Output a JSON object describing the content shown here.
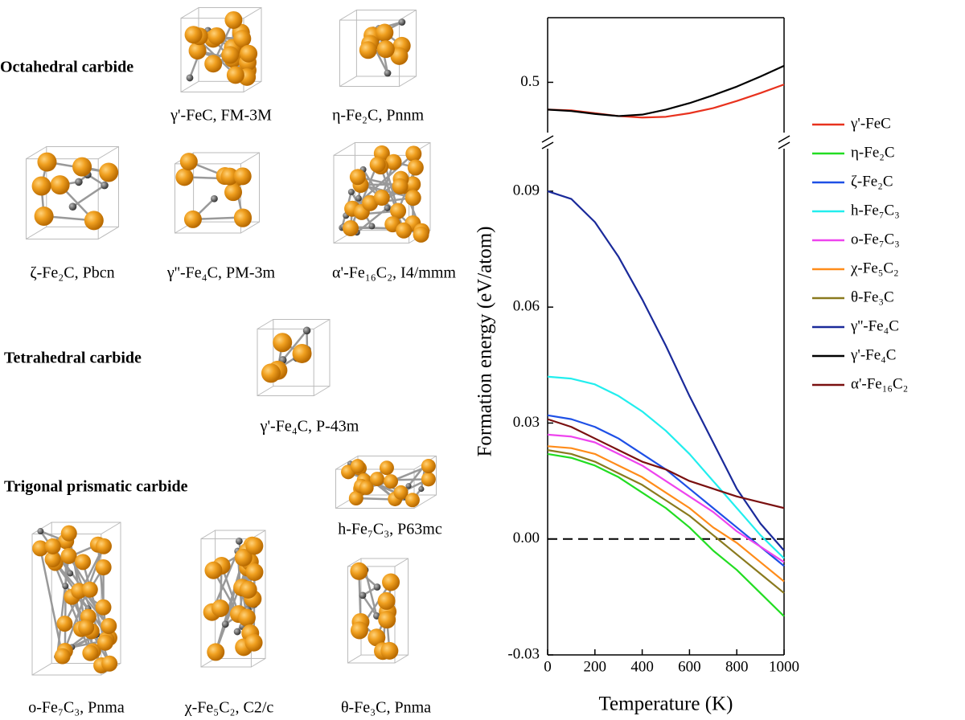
{
  "structure_panel": {
    "groups": [
      "Octahedral carbide",
      "Tetrahedral carbide",
      "Trigonal prismatic carbide"
    ],
    "structures": [
      {
        "label": "γ'-FeC, FM-3M"
      },
      {
        "label": "η-Fe₂C, Pnnm"
      },
      {
        "label": "ζ-Fe₂C, Pbcn"
      },
      {
        "label": "γ''-Fe₄C, PM-3m"
      },
      {
        "label": "α'-Fe₁₆C₂, I4/mmm"
      },
      {
        "label": "γ'-Fe₄C, P-43m"
      },
      {
        "label": "h-Fe₇C₃, P63mc"
      },
      {
        "label": "o-Fe₇C₃, Pnma"
      },
      {
        "label": "χ-Fe₅C₂, C2/c"
      },
      {
        "label": "θ-Fe₃C, Pnma"
      }
    ]
  },
  "chart_data": {
    "type": "line",
    "x_label": "Temperature (K)",
    "y_label": "Formation energy (eV/atom)",
    "x": [
      0,
      100,
      200,
      300,
      400,
      500,
      600,
      700,
      800,
      900,
      1000
    ],
    "xlim": [
      0,
      1000
    ],
    "xticks": [
      0,
      200,
      400,
      600,
      800,
      1000
    ],
    "ylim": [
      -0.03,
      0.101
    ],
    "yticks": [
      {
        "value": -0.03,
        "label": "-0.03"
      },
      {
        "value": 0,
        "label": "0.00"
      },
      {
        "value": 0.03,
        "label": "0.03"
      },
      {
        "value": 0.06,
        "label": "0.06"
      },
      {
        "value": 0.09,
        "label": "0.09"
      }
    ],
    "y2lim": [
      0.43,
      0.59
    ],
    "y2ticks": [
      0.5
    ],
    "axis_break": true,
    "zero_line": true,
    "series": [
      {
        "name": "γ'-FeC",
        "color": "#e8321e",
        "axis": "y2",
        "values": [
          0.462,
          0.461,
          0.457,
          0.453,
          0.451,
          0.452,
          0.457,
          0.464,
          0.474,
          0.485,
          0.497
        ]
      },
      {
        "name": "η-Fe₂C",
        "color": "#22dd22",
        "values": [
          0.022,
          0.021,
          0.019,
          0.016,
          0.012,
          0.008,
          0.003,
          -0.003,
          -0.008,
          -0.014,
          -0.02
        ]
      },
      {
        "name": "ζ-Fe₂C",
        "color": "#1e50e6",
        "values": [
          0.032,
          0.031,
          0.029,
          0.026,
          0.022,
          0.018,
          0.013,
          0.008,
          0.003,
          -0.002,
          -0.007
        ]
      },
      {
        "name": "h-Fe₇C₃",
        "color": "#22eeee",
        "values": [
          0.042,
          0.0415,
          0.04,
          0.037,
          0.033,
          0.028,
          0.022,
          0.015,
          0.008,
          0.001,
          -0.005
        ]
      },
      {
        "name": "o-Fe₇C₃",
        "color": "#ee44ee",
        "values": [
          0.027,
          0.0265,
          0.025,
          0.022,
          0.019,
          0.015,
          0.011,
          0.007,
          0.002,
          -0.002,
          -0.006
        ]
      },
      {
        "name": "χ-Fe₅C₂",
        "color": "#ff8c1a",
        "values": [
          0.024,
          0.0235,
          0.022,
          0.019,
          0.016,
          0.012,
          0.008,
          0.003,
          -0.001,
          -0.006,
          -0.011
        ]
      },
      {
        "name": "θ-Fe₃C",
        "color": "#8a7a1e",
        "values": [
          0.023,
          0.022,
          0.02,
          0.017,
          0.014,
          0.01,
          0.006,
          0.001,
          -0.004,
          -0.009,
          -0.014
        ]
      },
      {
        "name": "γ''-Fe₄C",
        "color": "#1a2a9a",
        "values": [
          0.09,
          0.088,
          0.082,
          0.073,
          0.062,
          0.05,
          0.037,
          0.025,
          0.013,
          0.004,
          -0.003
        ]
      },
      {
        "name": "γ'-Fe₄C",
        "color": "#000000",
        "axis": "y2",
        "values": [
          0.462,
          0.46,
          0.456,
          0.453,
          0.455,
          0.462,
          0.471,
          0.482,
          0.494,
          0.508,
          0.523
        ]
      },
      {
        "name": "α'-Fe₁₆C₂",
        "color": "#7a1010",
        "values": [
          0.031,
          0.029,
          0.026,
          0.023,
          0.02,
          0.018,
          0.015,
          0.013,
          0.011,
          0.0095,
          0.008
        ]
      }
    ]
  }
}
